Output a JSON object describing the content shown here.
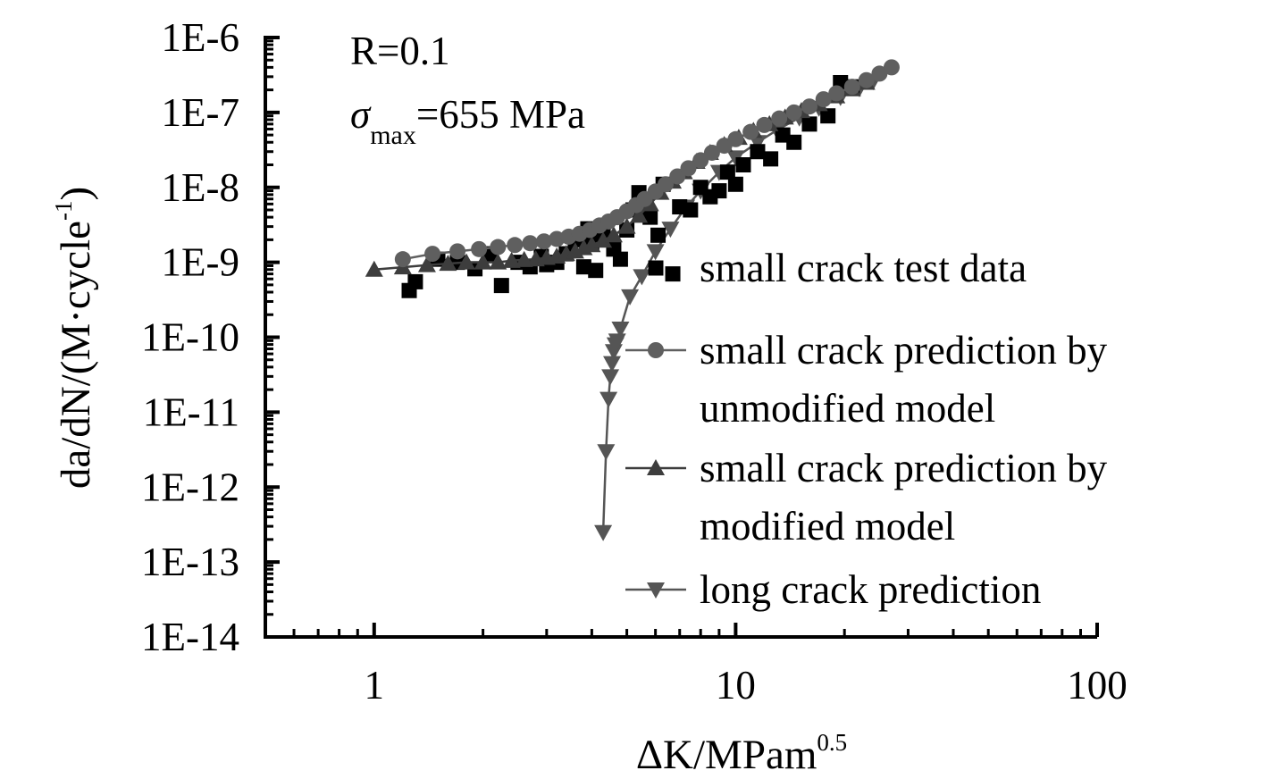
{
  "chart_data": {
    "type": "scatter",
    "x_scale": "log",
    "y_scale": "log",
    "xlim": [
      0.5,
      100
    ],
    "ylim": [
      1e-14,
      1e-06
    ],
    "grid": false,
    "legend_position": "right",
    "x_ticks": [
      {
        "value": 1,
        "label": "1"
      },
      {
        "value": 10,
        "label": "10"
      },
      {
        "value": 100,
        "label": "100"
      }
    ],
    "y_ticks": [
      {
        "value": 1e-06,
        "label": "1E-6"
      },
      {
        "value": 1e-07,
        "label": "1E-7"
      },
      {
        "value": 1e-08,
        "label": "1E-8"
      },
      {
        "value": 1e-09,
        "label": "1E-9"
      },
      {
        "value": 1e-10,
        "label": "1E-10"
      },
      {
        "value": 1e-11,
        "label": "1E-11"
      },
      {
        "value": 1e-12,
        "label": "1E-12"
      },
      {
        "value": 1e-13,
        "label": "1E-13"
      },
      {
        "value": 1e-14,
        "label": "1E-14"
      }
    ],
    "xlabel": {
      "main": "ΔK/MPam",
      "sup": "0.5"
    },
    "ylabel": {
      "main": "da/dN/(M·cycle",
      "sup": "-1",
      "end": ")"
    },
    "annotations": {
      "r_label": "R=0.1",
      "sigma_symbol": "σ",
      "sigma_sub": "max",
      "sigma_value": "=655 MPa"
    },
    "series": [
      {
        "name": "small crack test data",
        "marker": "square",
        "color": "#000000",
        "line": false,
        "points": [
          [
            1.25,
            4.2e-10
          ],
          [
            1.3,
            5.5e-10
          ],
          [
            1.5,
            1.1e-09
          ],
          [
            1.7,
            1e-09
          ],
          [
            1.9,
            8.2e-10
          ],
          [
            2.1,
            1.3e-09
          ],
          [
            2.25,
            4.9e-10
          ],
          [
            2.5,
            1e-09
          ],
          [
            2.7,
            8.7e-10
          ],
          [
            2.9,
            1.2e-09
          ],
          [
            3.0,
            9.3e-10
          ],
          [
            3.2,
            1e-09
          ],
          [
            3.4,
            1.3e-09
          ],
          [
            3.6,
            2e-09
          ],
          [
            3.8,
            8.7e-10
          ],
          [
            3.9,
            2.8e-09
          ],
          [
            4.0,
            1.8e-09
          ],
          [
            4.1,
            7.8e-10
          ],
          [
            4.3,
            2.3e-09
          ],
          [
            4.6,
            1.5e-09
          ],
          [
            4.8,
            1.1e-09
          ],
          [
            5.0,
            2.7e-09
          ],
          [
            5.2,
            5e-09
          ],
          [
            5.4,
            8.5e-09
          ],
          [
            5.8,
            4e-09
          ],
          [
            6.1,
            2.3e-09
          ],
          [
            6.3,
            1.1e-08
          ],
          [
            6.7,
            7e-10
          ],
          [
            7.0,
            5.5e-09
          ],
          [
            7.5,
            5e-09
          ],
          [
            8.0,
            1e-08
          ],
          [
            8.5,
            7.5e-09
          ],
          [
            9.0,
            9e-09
          ],
          [
            9.5,
            1.6e-08
          ],
          [
            10.0,
            1.1e-08
          ],
          [
            10.5,
            2e-08
          ],
          [
            11.5,
            3e-08
          ],
          [
            12.5,
            2.4e-08
          ],
          [
            13.5,
            5e-08
          ],
          [
            14.5,
            4e-08
          ],
          [
            16.0,
            7e-08
          ],
          [
            18.0,
            9e-08
          ],
          [
            19.5,
            2.5e-07
          ],
          [
            21.0,
            2.2e-07
          ]
        ]
      },
      {
        "name": "small crack prediction by unmodified model",
        "marker": "circle",
        "color": "#5f5f5f",
        "line": true,
        "points": [
          [
            1.2,
            1.1e-09
          ],
          [
            1.45,
            1.3e-09
          ],
          [
            1.7,
            1.4e-09
          ],
          [
            1.95,
            1.5e-09
          ],
          [
            2.2,
            1.6e-09
          ],
          [
            2.45,
            1.7e-09
          ],
          [
            2.7,
            1.8e-09
          ],
          [
            2.95,
            1.9e-09
          ],
          [
            3.2,
            2.05e-09
          ],
          [
            3.45,
            2.2e-09
          ],
          [
            3.7,
            2.4e-09
          ],
          [
            3.95,
            2.7e-09
          ],
          [
            4.2,
            3.1e-09
          ],
          [
            4.45,
            3.5e-09
          ],
          [
            4.7,
            4e-09
          ],
          [
            5.0,
            4.8e-09
          ],
          [
            5.3,
            5.8e-09
          ],
          [
            5.6,
            7e-09
          ],
          [
            6.0,
            8.8e-09
          ],
          [
            6.4,
            1.1e-08
          ],
          [
            6.9,
            1.4e-08
          ],
          [
            7.4,
            1.8e-08
          ],
          [
            8.0,
            2.3e-08
          ],
          [
            8.6,
            2.9e-08
          ],
          [
            9.3,
            3.6e-08
          ],
          [
            10.0,
            4.4e-08
          ],
          [
            11.0,
            5.5e-08
          ],
          [
            12.0,
            6.8e-08
          ],
          [
            13.2,
            8.3e-08
          ],
          [
            14.5,
            1e-07
          ],
          [
            16.0,
            1.2e-07
          ],
          [
            17.5,
            1.5e-07
          ],
          [
            19.0,
            1.8e-07
          ],
          [
            21.0,
            2.2e-07
          ],
          [
            23.0,
            2.7e-07
          ],
          [
            25.0,
            3.3e-07
          ],
          [
            27.0,
            4e-07
          ]
        ]
      },
      {
        "name": "small crack prediction by modified model",
        "marker": "triangle-up",
        "color": "#3d3d3d",
        "line": true,
        "points": [
          [
            1.0,
            8e-10
          ],
          [
            1.2,
            8.6e-10
          ],
          [
            1.4,
            9.2e-10
          ],
          [
            1.6,
            9.6e-10
          ],
          [
            1.8,
            1e-09
          ],
          [
            2.0,
            1e-09
          ],
          [
            2.2,
            1e-09
          ],
          [
            2.4,
            1.05e-09
          ],
          [
            2.6,
            1.08e-09
          ],
          [
            2.8,
            1.1e-09
          ],
          [
            3.0,
            1.15e-09
          ],
          [
            3.2,
            1.2e-09
          ],
          [
            3.4,
            1.3e-09
          ],
          [
            3.6,
            1.4e-09
          ],
          [
            3.8,
            1.55e-09
          ],
          [
            4.0,
            1.7e-09
          ],
          [
            4.3,
            1.95e-09
          ],
          [
            4.6,
            2.3e-09
          ],
          [
            5.0,
            3e-09
          ],
          [
            5.4,
            4.2e-09
          ],
          [
            5.8,
            6e-09
          ],
          [
            6.2,
            8.5e-09
          ],
          [
            6.7,
            1.2e-08
          ],
          [
            7.2,
            1.6e-08
          ],
          [
            7.8,
            2.2e-08
          ],
          [
            8.5,
            2.9e-08
          ],
          [
            9.3,
            3.7e-08
          ],
          [
            10.2,
            4.6e-08
          ],
          [
            11.2,
            5.7e-08
          ],
          [
            12.4,
            7e-08
          ],
          [
            13.7,
            8.6e-08
          ],
          [
            15.2,
            1.05e-07
          ],
          [
            17.0,
            1.3e-07
          ],
          [
            19.0,
            1.65e-07
          ],
          [
            21.0,
            2.05e-07
          ],
          [
            23.0,
            2.5e-07
          ]
        ]
      },
      {
        "name": "long crack prediction",
        "marker": "triangle-down",
        "color": "#555555",
        "line": true,
        "points": [
          [
            4.3,
            2.5e-13
          ],
          [
            4.38,
            3e-12
          ],
          [
            4.45,
            1.5e-11
          ],
          [
            4.5,
            3e-11
          ],
          [
            4.55,
            4.5e-11
          ],
          [
            4.6,
            6.5e-11
          ],
          [
            4.65,
            8e-11
          ],
          [
            4.7,
            9e-11
          ],
          [
            4.8,
            1.3e-10
          ],
          [
            5.1,
            3.5e-10
          ],
          [
            5.5,
            6.5e-10
          ],
          [
            6.0,
            1.4e-09
          ],
          [
            6.6,
            2.8e-09
          ],
          [
            7.3,
            5.5e-09
          ],
          [
            8.0,
            9e-09
          ],
          [
            9.0,
            1.6e-08
          ],
          [
            10.0,
            2.5e-08
          ],
          [
            11.5,
            4e-08
          ],
          [
            13.0,
            5.8e-08
          ],
          [
            15.0,
            8.5e-08
          ],
          [
            17.0,
            1.15e-07
          ],
          [
            19.5,
            1.6e-07
          ],
          [
            22.0,
            2.1e-07
          ],
          [
            24.0,
            2.6e-07
          ]
        ]
      }
    ],
    "legend_lines": {
      "small crack test data": [
        "small crack test data"
      ],
      "small crack prediction by unmodified model": [
        "small crack prediction by",
        "unmodified model"
      ],
      "small crack prediction by modified model": [
        "small crack prediction by",
        "modified model"
      ],
      "long crack prediction": [
        "long crack prediction"
      ]
    }
  }
}
